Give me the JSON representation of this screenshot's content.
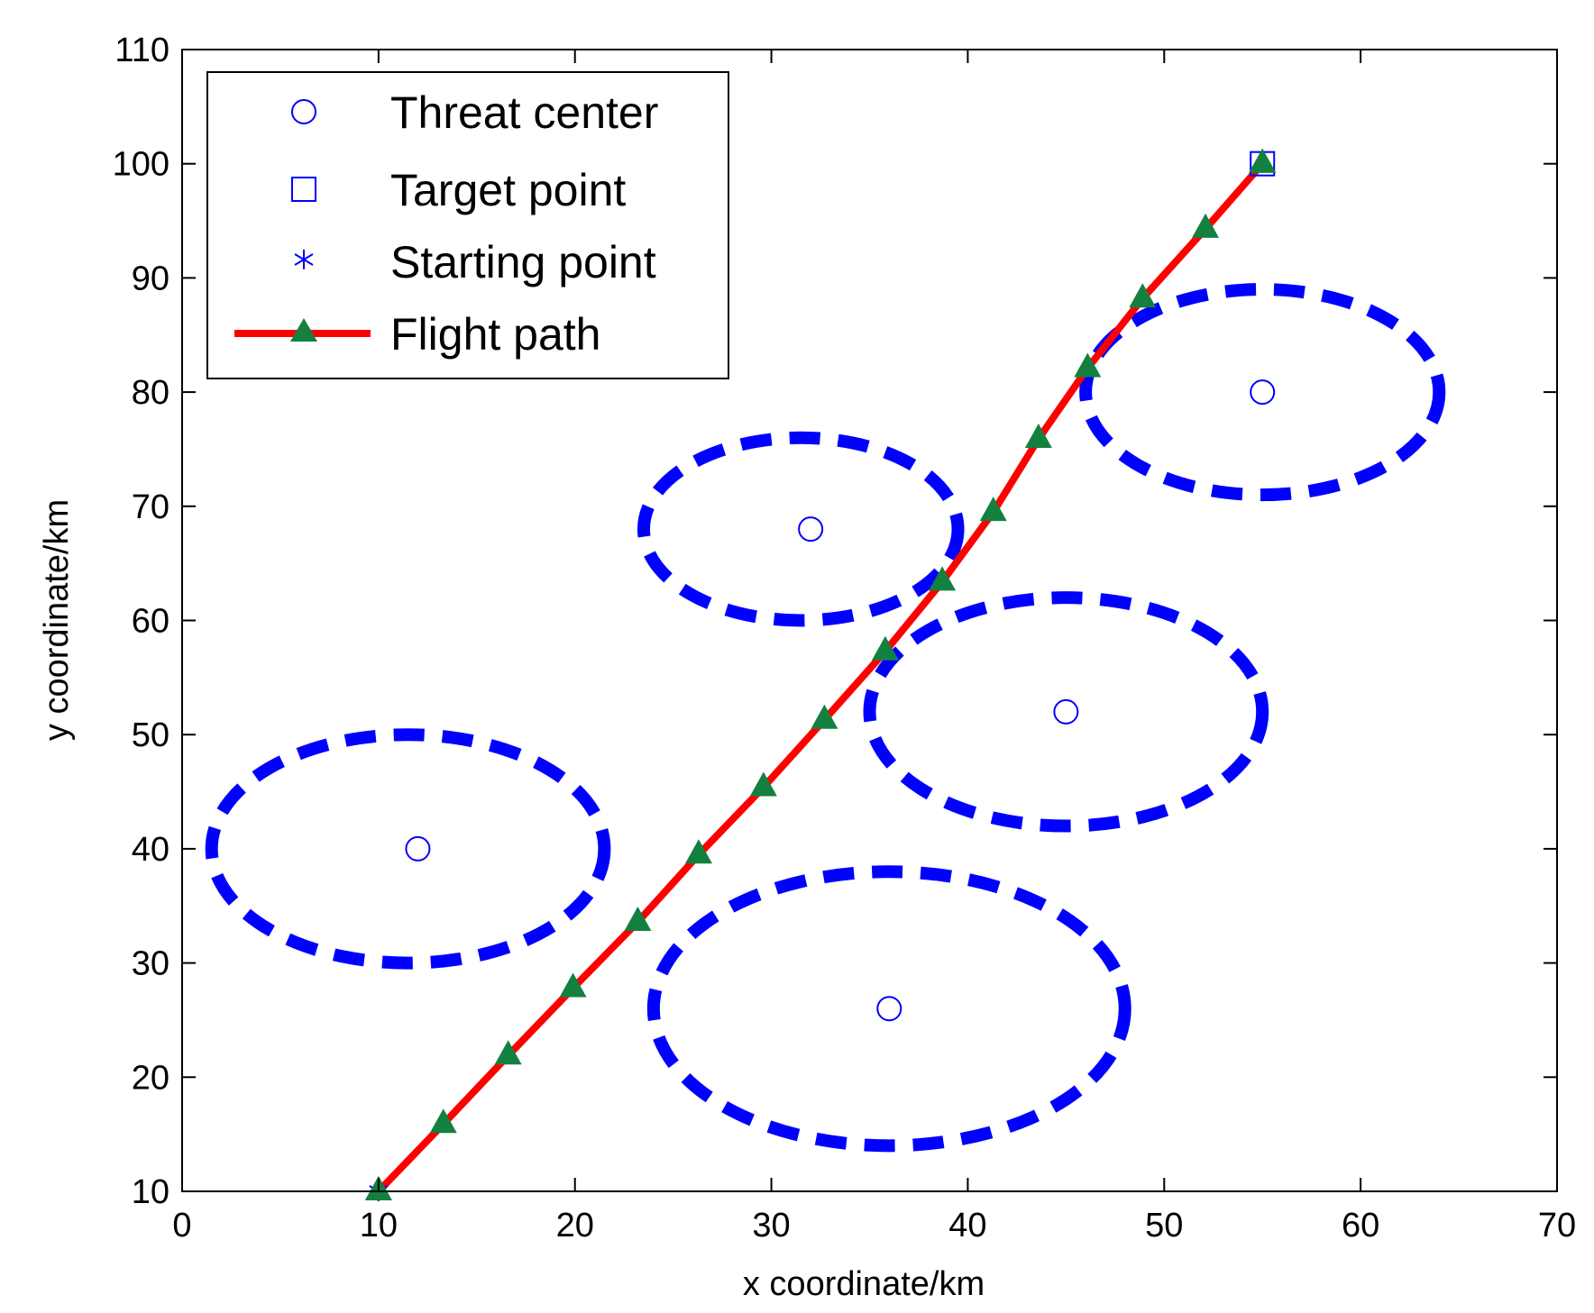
{
  "chart_data": {
    "type": "line",
    "xlabel": "x coordinate/km",
    "ylabel": "y coordinate/km",
    "xlim": [
      0,
      70
    ],
    "ylim": [
      10,
      110
    ],
    "xticks": [
      "0",
      "10",
      "20",
      "30",
      "40",
      "50",
      "60",
      "70"
    ],
    "yticks": [
      "10",
      "20",
      "30",
      "40",
      "50",
      "60",
      "70",
      "80",
      "90",
      "100",
      "110"
    ],
    "grid": false,
    "legend_position": "top-left",
    "legend": [
      {
        "label": "Threat center",
        "marker": "circle"
      },
      {
        "label": "Target point",
        "marker": "square"
      },
      {
        "label": "Starting point",
        "marker": "asterisk"
      },
      {
        "label": "Flight path",
        "marker": "triangle-line"
      }
    ],
    "threat_centers": [
      {
        "x": 12,
        "y": 40
      },
      {
        "x": 32,
        "y": 68
      },
      {
        "x": 45,
        "y": 52
      },
      {
        "x": 36,
        "y": 26
      },
      {
        "x": 55,
        "y": 80
      }
    ],
    "threat_zones": [
      {
        "cx": 11.5,
        "cy": 40,
        "rx": 10,
        "ry": 10
      },
      {
        "cx": 31.5,
        "cy": 68,
        "rx": 8,
        "ry": 8
      },
      {
        "cx": 45,
        "cy": 52,
        "rx": 10,
        "ry": 10
      },
      {
        "cx": 36,
        "cy": 26,
        "rx": 12,
        "ry": 12
      },
      {
        "cx": 55,
        "cy": 80,
        "rx": 9,
        "ry": 9
      }
    ],
    "target_point": {
      "x": 55,
      "y": 100
    },
    "starting_point": {
      "x": 10,
      "y": 10
    },
    "series": [
      {
        "name": "Flight path",
        "x": [
          10,
          13.3,
          16.6,
          19.9,
          23.2,
          26.3,
          29.6,
          32.7,
          35.8,
          38.7,
          41.3,
          43.6,
          46.1,
          48.9,
          52.1,
          55
        ],
        "y": [
          10,
          15.9,
          21.9,
          27.8,
          33.6,
          39.5,
          45.4,
          51.3,
          57.3,
          63.4,
          69.5,
          75.9,
          82.1,
          88.2,
          94.3,
          100
        ]
      }
    ],
    "colors": {
      "threat": "#0000ff",
      "path_line": "#ff0000",
      "path_marker": "#138040"
    }
  }
}
